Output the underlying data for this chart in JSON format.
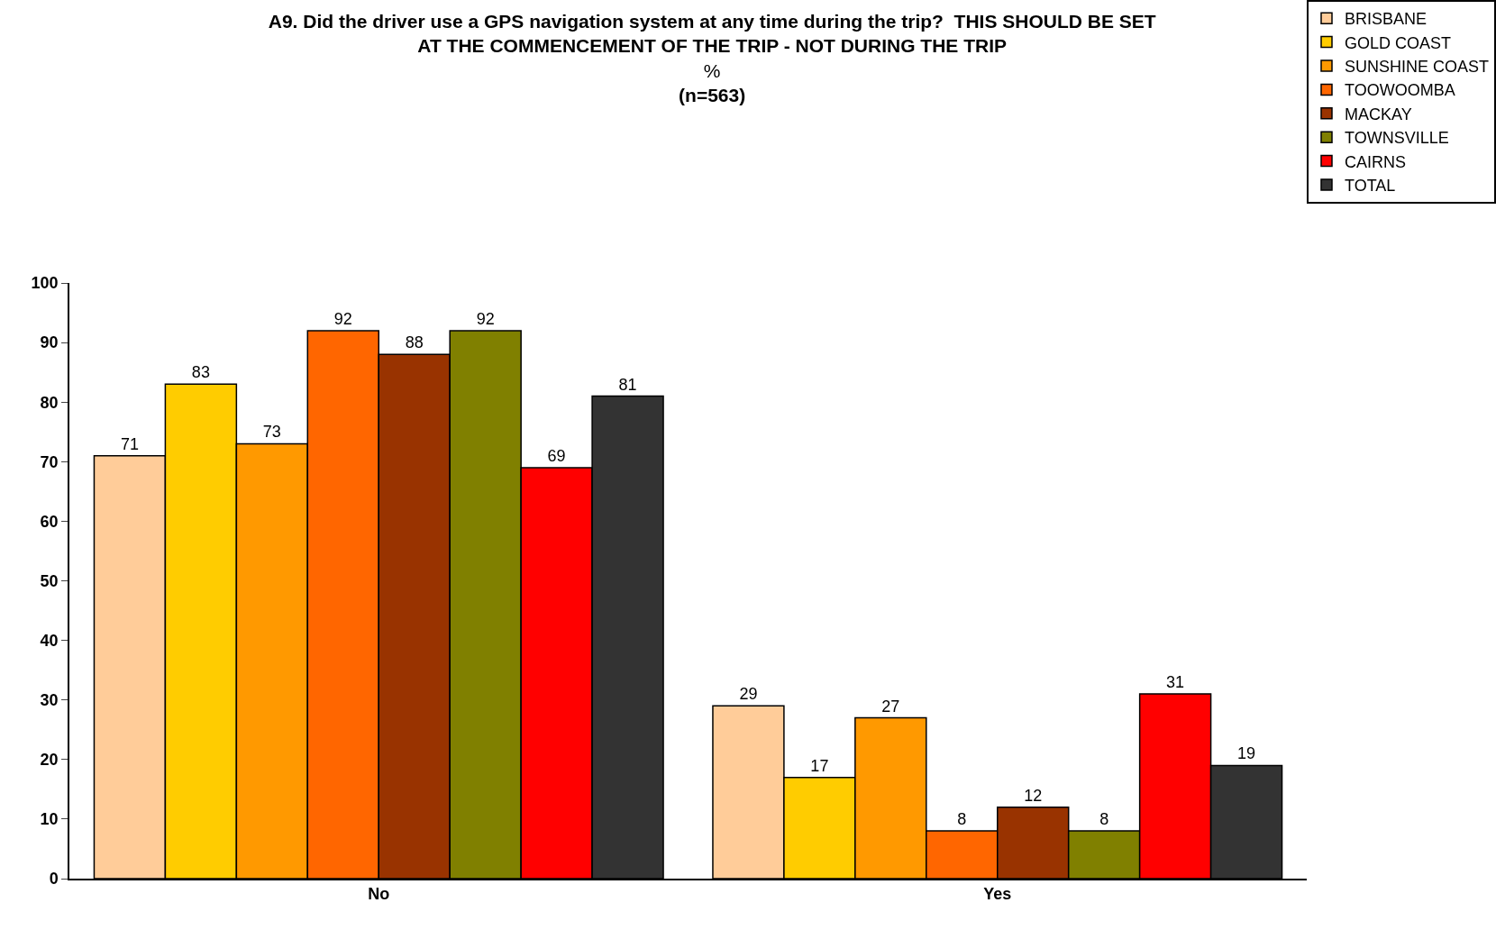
{
  "chart_data": {
    "type": "bar",
    "title": "A9. Did the driver use a GPS navigation system at any time during the trip?  THIS SHOULD BE SET AT THE COMMENCEMENT OF THE TRIP - NOT DURING THE TRIP",
    "subtitle": "%",
    "annotations": [
      "(n=563)"
    ],
    "categories": [
      "No",
      "Yes"
    ],
    "series": [
      {
        "name": "BRISBANE",
        "color": "#ffcc99",
        "values": [
          71,
          29
        ]
      },
      {
        "name": "GOLD COAST",
        "color": "#ffcc00",
        "values": [
          83,
          17
        ]
      },
      {
        "name": "SUNSHINE COAST",
        "color": "#ff9900",
        "values": [
          73,
          27
        ]
      },
      {
        "name": "TOOWOOMBA",
        "color": "#ff6600",
        "values": [
          92,
          8
        ]
      },
      {
        "name": "MACKAY",
        "color": "#993300",
        "values": [
          88,
          12
        ]
      },
      {
        "name": "TOWNSVILLE",
        "color": "#808000",
        "values": [
          92,
          8
        ]
      },
      {
        "name": "CAIRNS",
        "color": "#ff0000",
        "values": [
          69,
          31
        ]
      },
      {
        "name": "TOTAL",
        "color": "#333333",
        "values": [
          81,
          19
        ]
      }
    ],
    "ylim": [
      0,
      100
    ],
    "yticks": [
      0,
      10,
      20,
      30,
      40,
      50,
      60,
      70,
      80,
      90,
      100
    ],
    "data_labels": true,
    "grid": false,
    "legend": "top right"
  }
}
